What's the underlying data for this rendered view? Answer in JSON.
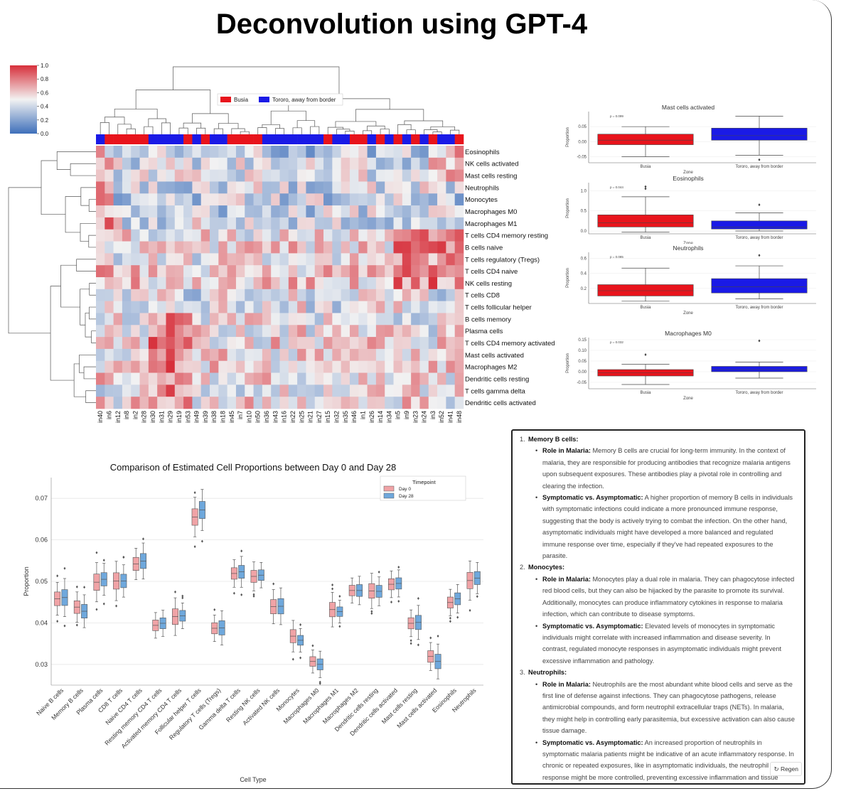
{
  "page": {
    "title": "Deconvolution using GPT-4"
  },
  "colorbar": {
    "ticks": [
      "1.0",
      "0.8",
      "0.6",
      "0.4",
      "0.2",
      "0.0"
    ]
  },
  "heatmap_legend": {
    "busia": "Busia",
    "tororo": "Tororo, away from border"
  },
  "chart_data": [
    {
      "type": "heatmap",
      "title": "",
      "rows": [
        "Eosinophils",
        "NK cells activated",
        "Mast cells resting",
        "Neutrophils",
        "Monocytes",
        "Macrophages M0",
        "Macrophages M1",
        "T cells CD4 memory resting",
        "B cells naive",
        "T cells regulatory (Tregs)",
        "T cells CD4 naive",
        "NK cells resting",
        "T cells CD8",
        "T cells follicular helper",
        "B cells memory",
        "Plasma cells",
        "T cells CD4 memory activated",
        "Mast cells activated",
        "Macrophages M2",
        "Dendritic cells resting",
        "T cells gamma delta",
        "Dendritic cells activated"
      ],
      "columns": [
        "in40",
        "in6",
        "in12",
        "in8",
        "in2",
        "in28",
        "in30",
        "in31",
        "in29",
        "in19",
        "in53",
        "in49",
        "in39",
        "in38",
        "in18",
        "in45",
        "in7",
        "in10",
        "in50",
        "in36",
        "in43",
        "in16",
        "in22",
        "in25",
        "in21",
        "in27",
        "in15",
        "in32",
        "in35",
        "in46",
        "in1",
        "in26",
        "in14",
        "in34",
        "in5",
        "in9",
        "in23",
        "in24",
        "in3",
        "in52",
        "in41",
        "in48"
      ],
      "column_group": [
        "T",
        "B",
        "B",
        "B",
        "B",
        "B",
        "T",
        "T",
        "T",
        "T",
        "B",
        "T",
        "B",
        "T",
        "T",
        "B",
        "B",
        "B",
        "B",
        "T",
        "T",
        "T",
        "T",
        "T",
        "T",
        "T",
        "B",
        "T",
        "T",
        "B",
        "B",
        "T",
        "B",
        "T",
        "B",
        "T",
        "B",
        "T",
        "B",
        "T",
        "T",
        "B"
      ],
      "scale": [
        0.0,
        1.0
      ]
    },
    {
      "type": "box",
      "title": "Mast cells activated",
      "p_label": "p = 0.099",
      "xlabel": "Zone",
      "ylabel": "Proportion",
      "categories": [
        "Busia",
        "Tororo, away from border"
      ],
      "ylim": [
        -0.07,
        0.1
      ],
      "yticks": [
        "0.05",
        "0.00",
        "-0.05"
      ],
      "ytick_values": [
        0.05,
        0.0,
        -0.05
      ],
      "boxes": [
        {
          "whislo": -0.05,
          "q1": -0.01,
          "med": 0.005,
          "q3": 0.025,
          "whishi": 0.05,
          "fliers": []
        },
        {
          "whislo": -0.045,
          "q1": 0.005,
          "med": 0.02,
          "q3": 0.045,
          "whishi": 0.085,
          "fliers": [
            -0.06
          ]
        }
      ]
    },
    {
      "type": "box",
      "title": "Eosinophils",
      "p_label": "p = 0.044",
      "xlabel": "Zone",
      "ylabel": "Proportion",
      "categories": [
        "Busia",
        "Tororo, away from border"
      ],
      "ylim": [
        -0.07,
        1.2
      ],
      "yticks": [
        "1.0",
        "0.5",
        "0.0"
      ],
      "ytick_values": [
        1.0,
        0.5,
        0.0
      ],
      "boxes": [
        {
          "whislo": -0.03,
          "q1": 0.1,
          "med": 0.2,
          "q3": 0.4,
          "whishi": 0.85,
          "fliers": [
            1.05,
            1.1
          ]
        },
        {
          "whislo": 0.0,
          "q1": 0.05,
          "med": 0.1,
          "q3": 0.25,
          "whishi": 0.45,
          "fliers": [
            0.65
          ]
        }
      ]
    },
    {
      "type": "box",
      "title": "Neutrophils",
      "p_label": "p = 0.085",
      "xlabel": "Zone",
      "ylabel": "Proportion",
      "categories": [
        "Busia",
        "Tororo, away from border"
      ],
      "ylim": [
        0.0,
        0.68
      ],
      "yticks": [
        "0.6",
        "0.4",
        "0.2"
      ],
      "ytick_values": [
        0.6,
        0.4,
        0.2
      ],
      "boxes": [
        {
          "whislo": 0.03,
          "q1": 0.1,
          "med": 0.17,
          "q3": 0.25,
          "whishi": 0.47,
          "fliers": []
        },
        {
          "whislo": 0.06,
          "q1": 0.14,
          "med": 0.22,
          "q3": 0.33,
          "whishi": 0.5,
          "fliers": [
            0.64
          ]
        }
      ]
    },
    {
      "type": "box",
      "title": "Macrophages M0",
      "p_label": "p = 0.032",
      "xlabel": "Zone",
      "ylabel": "Proportion",
      "categories": [
        "Busia",
        "Tororo, away from border"
      ],
      "ylim": [
        -0.08,
        0.16
      ],
      "yticks": [
        "0.15",
        "0.10",
        "0.05",
        "0.00",
        "-0.05"
      ],
      "ytick_values": [
        0.15,
        0.1,
        0.05,
        0.0,
        -0.05
      ],
      "boxes": [
        {
          "whislo": -0.06,
          "q1": -0.02,
          "med": -0.005,
          "q3": 0.01,
          "whishi": 0.035,
          "fliers": [
            0.08
          ]
        },
        {
          "whislo": -0.03,
          "q1": 0.0,
          "med": 0.01,
          "q3": 0.025,
          "whishi": 0.045,
          "fliers": [
            0.145
          ]
        }
      ]
    },
    {
      "type": "box",
      "title": "Comparison of Estimated Cell Proportions between Day 0 and Day 28",
      "xlabel": "Cell Type",
      "ylabel": "Proportion",
      "ylim": [
        0.025,
        0.075
      ],
      "yticks": [
        "0.07",
        "0.06",
        "0.05",
        "0.04",
        "0.03"
      ],
      "ytick_values": [
        0.07,
        0.06,
        0.05,
        0.04,
        0.03
      ],
      "legend_title": "Timepoint",
      "series": [
        {
          "name": "Day 0",
          "color": "#f0a3a6"
        },
        {
          "name": "Day 28",
          "color": "#6fa8dc"
        }
      ],
      "categories": [
        "Naive B cells",
        "Memory B cells",
        "Plasma cells",
        "CD8 T cells",
        "Naive CD4 T cells",
        "Resting memory CD4 T cells",
        "Activated memory CD4 T cells",
        "Follicular helper T cells",
        "Regulatory T cells (Tregs)",
        "Gamma delta T cells",
        "Resting NK cells",
        "Activated NK cells",
        "Monocytes",
        "Macrophages M0",
        "Macrophages M1",
        "Macrophages M2",
        "Dendritic cells resting",
        "Dendritic cells activated",
        "Mast cells resting",
        "Mast cells activated",
        "Eosinophils",
        "Neutrophils"
      ],
      "day0_median": [
        0.0458,
        0.0438,
        0.0498,
        0.0501,
        0.0542,
        0.0394,
        0.0415,
        0.0655,
        0.0387,
        0.0519,
        0.0512,
        0.0439,
        0.0368,
        0.0307,
        0.0432,
        0.0478,
        0.0477,
        0.0493,
        0.0399,
        0.0319,
        0.0449,
        0.0502
      ],
      "day28_median": [
        0.0461,
        0.0428,
        0.0505,
        0.0501,
        0.0549,
        0.0399,
        0.0417,
        0.0672,
        0.0388,
        0.0523,
        0.0515,
        0.044,
        0.0358,
        0.03,
        0.0427,
        0.0478,
        0.0476,
        0.0495,
        0.0401,
        0.0307,
        0.0458,
        0.0508
      ]
    }
  ],
  "chat": {
    "items": [
      {
        "num": "1.",
        "heading": "Memory B cells:",
        "bullets": [
          {
            "label": "Role in Malaria:",
            "text": "Memory B cells are crucial for long-term immunity. In the context of malaria, they are responsible for producing antibodies that recognize malaria antigens upon subsequent exposures. These antibodies play a pivotal role in controlling and clearing the infection."
          },
          {
            "label": "Symptomatic vs. Asymptomatic:",
            "text": "A higher proportion of memory B cells in individuals with symptomatic infections could indicate a more pronounced immune response, suggesting that the body is actively trying to combat the infection. On the other hand, asymptomatic individuals might have developed a more balanced and regulated immune response over time, especially if they've had repeated exposures to the parasite."
          }
        ]
      },
      {
        "num": "2.",
        "heading": "Monocytes:",
        "bullets": [
          {
            "label": "Role in Malaria:",
            "text": "Monocytes play a dual role in malaria. They can phagocytose infected red blood cells, but they can also be hijacked by the parasite to promote its survival. Additionally, monocytes can produce inflammatory cytokines in response to malaria infection, which can contribute to disease symptoms."
          },
          {
            "label": "Symptomatic vs. Asymptomatic:",
            "text": "Elevated levels of monocytes in symptomatic individuals might correlate with increased inflammation and disease severity. In contrast, regulated monocyte responses in asymptomatic individuals might prevent excessive inflammation and pathology."
          }
        ]
      },
      {
        "num": "3.",
        "heading": "Neutrophils:",
        "bullets": [
          {
            "label": "Role in Malaria:",
            "text": "Neutrophils are the most abundant white blood cells and serve as the first line of defense against infections. They can phagocytose pathogens, release antimicrobial compounds, and form neutrophil extracellular traps (NETs). In malaria, they might help in controlling early parasitemia, but excessive activation can also cause tissue damage."
          },
          {
            "label": "Symptomatic vs. Asymptomatic:",
            "text": "An increased proportion of neutrophils in symptomatic malaria patients might be indicative of an acute inflammatory response. In chronic or repeated exposures, like in asymptomatic individuals, the neutrophil response might be more controlled, preventing excessive inflammation and tissue damage."
          }
        ]
      }
    ],
    "regen_label": "Regen"
  },
  "colors": {
    "busia": "#e8141c",
    "tororo": "#1a1ae6",
    "day0": "#f0a3a6",
    "day28": "#6fa8dc"
  }
}
